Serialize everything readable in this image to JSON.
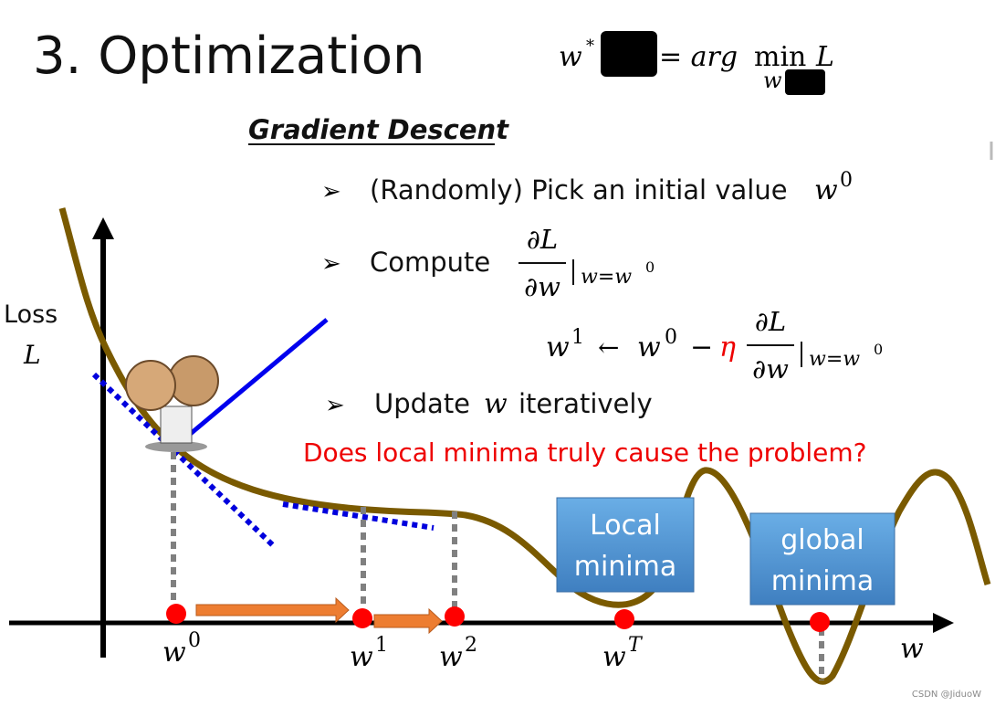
{
  "title": "3. Optimization",
  "formula": {
    "lhs": "w",
    "star": "*",
    "eq": "= arg",
    "min": "min",
    "sub": "w",
    "rhs": "L"
  },
  "heading": "Gradient Descent",
  "steps": [
    {
      "text": "(Randomly) Pick an initial value",
      "var": "w",
      "sup": "0"
    },
    {
      "text": "Compute",
      "num": "∂L",
      "den": "∂w",
      "eval": "w=w",
      "eval_sup": "0"
    },
    {
      "text": "Update",
      "var": "w",
      "rest": "iteratively"
    }
  ],
  "update_rule": {
    "lhs": "w",
    "lhs_sup": "1",
    "arrow": "←",
    "w": "w",
    "w_sup": "0",
    "minus": "−",
    "eta": "η",
    "num": "∂L",
    "den": "∂w",
    "eval": "w=w",
    "eval_sup": "0"
  },
  "question": "Does local minima truly cause the problem?",
  "y_axis": {
    "label": "Loss",
    "symbol": "L"
  },
  "x_axis": {
    "label": "w",
    "points": [
      {
        "var": "w",
        "sup": "0"
      },
      {
        "var": "w",
        "sup": "1"
      },
      {
        "var": "w",
        "sup": "2"
      },
      {
        "var": "w",
        "sup": "T"
      }
    ]
  },
  "callouts": [
    {
      "lines": [
        "Local",
        "minima"
      ]
    },
    {
      "lines": [
        "global",
        "minima"
      ]
    }
  ],
  "watermark": "CSDN @JiduoW"
}
